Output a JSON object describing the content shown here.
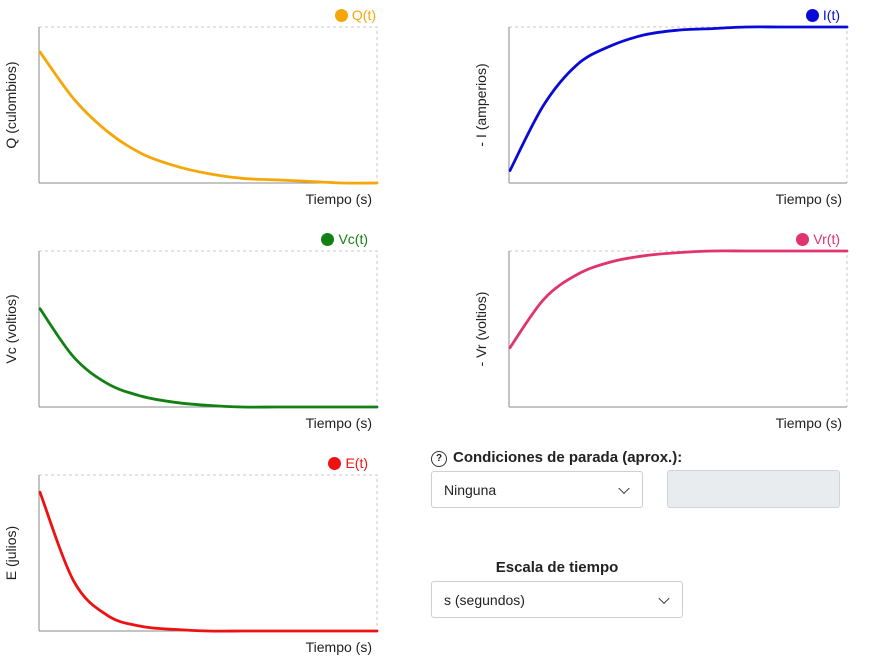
{
  "chart_data": [
    {
      "id": "q",
      "type": "line",
      "legend": "Q(t)",
      "ylabel": "Q (culombios)",
      "xlabel": "Tiempo (s)",
      "color": "#f5a70a",
      "y_fraction_of_plot_height": [
        0.84,
        0.54,
        0.33,
        0.19,
        0.11,
        0.06,
        0.03,
        0.02,
        0.01,
        0.0,
        0.0
      ]
    },
    {
      "id": "i",
      "type": "line",
      "legend": "I(t)",
      "ylabel": "- I (amperios)",
      "xlabel": "Tiempo (s)",
      "color": "#0a0ad8",
      "y_fraction_of_plot_height": [
        0.08,
        0.5,
        0.76,
        0.88,
        0.95,
        0.98,
        0.99,
        1.0,
        1.0,
        1.0,
        1.0
      ]
    },
    {
      "id": "vc",
      "type": "line",
      "legend": "Vc(t)",
      "ylabel": "Vc (voltios)",
      "xlabel": "Tiempo (s)",
      "color": "#138013",
      "y_fraction_of_plot_height": [
        0.63,
        0.32,
        0.15,
        0.07,
        0.03,
        0.01,
        0.0,
        0.0,
        0.0,
        0.0,
        0.0
      ]
    },
    {
      "id": "vr",
      "type": "line",
      "legend": "Vr(t)",
      "ylabel": "- Vr (voltios)",
      "xlabel": "Tiempo (s)",
      "color": "#e0336f",
      "y_fraction_of_plot_height": [
        0.38,
        0.69,
        0.85,
        0.93,
        0.97,
        0.99,
        1.0,
        1.0,
        1.0,
        1.0,
        1.0
      ]
    },
    {
      "id": "e",
      "type": "line",
      "legend": "E(t)",
      "ylabel": "E (julios)",
      "xlabel": "Tiempo (s)",
      "color": "#ee1111",
      "y_fraction_of_plot_height": [
        0.89,
        0.32,
        0.1,
        0.03,
        0.01,
        0.0,
        0.0,
        0.0,
        0.0,
        0.0,
        0.0
      ]
    }
  ],
  "stop_conditions": {
    "help_icon": "?",
    "label": "Condiciones de parada (aprox.):",
    "selected": "Ninguna",
    "value": ""
  },
  "time_scale": {
    "label": "Escala de tiempo",
    "selected": "s (segundos)"
  }
}
